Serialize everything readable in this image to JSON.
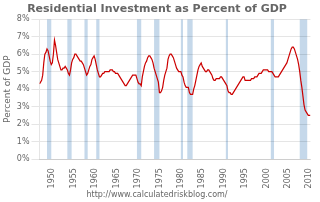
{
  "chart_data": {
    "type": "line",
    "title": "Residential Investment as Percent of GDP",
    "ylabel": "Percent of GDP",
    "annotations": [
      "http://www.calculatedriskblog.com/"
    ],
    "color": "#cc0000",
    "grid": "y",
    "xlim": [
      1947.0,
      2010.25
    ],
    "xticks": [
      1950,
      1955,
      1960,
      1965,
      1970,
      1975,
      1980,
      1985,
      1990,
      1995,
      2000,
      2005,
      2010
    ],
    "ylim": [
      0,
      8
    ],
    "yticks": [
      {
        "value": 0,
        "label": "0%"
      },
      {
        "value": 1,
        "label": "1%"
      },
      {
        "value": 2,
        "label": "2%"
      },
      {
        "value": 3,
        "label": "3%"
      },
      {
        "value": 4,
        "label": "4%"
      },
      {
        "value": 5,
        "label": "5%"
      },
      {
        "value": 6,
        "label": "6%"
      },
      {
        "value": 7,
        "label": "7%"
      },
      {
        "value": 8,
        "label": "8%"
      }
    ],
    "recessions": [
      [
        1948.75,
        1949.75
      ],
      [
        1953.5,
        1954.5
      ],
      [
        1957.5,
        1958.25
      ],
      [
        1960.25,
        1961.0
      ],
      [
        1969.75,
        1970.75
      ],
      [
        1973.75,
        1975.0
      ],
      [
        1980.0,
        1980.5
      ],
      [
        1981.5,
        1982.75
      ],
      [
        1990.5,
        1991.0
      ],
      [
        2001.0,
        2001.75
      ],
      [
        2007.75,
        2009.5
      ]
    ],
    "recession_color": "#c5d8ea",
    "x": [
      1947.0,
      1947.25,
      1947.5,
      1947.75,
      1948.0,
      1948.25,
      1948.5,
      1948.75,
      1949.0,
      1949.25,
      1949.5,
      1949.75,
      1950.0,
      1950.25,
      1950.5,
      1950.75,
      1951.0,
      1951.25,
      1951.5,
      1951.75,
      1952.0,
      1952.25,
      1952.5,
      1952.75,
      1953.0,
      1953.25,
      1953.5,
      1953.75,
      1954.0,
      1954.25,
      1954.5,
      1954.75,
      1955.0,
      1955.25,
      1955.5,
      1955.75,
      1956.0,
      1956.25,
      1956.5,
      1956.75,
      1957.0,
      1957.25,
      1957.5,
      1957.75,
      1958.0,
      1958.25,
      1958.5,
      1958.75,
      1959.0,
      1959.25,
      1959.5,
      1959.75,
      1960.0,
      1960.25,
      1960.5,
      1960.75,
      1961.0,
      1961.25,
      1961.5,
      1961.75,
      1962.0,
      1962.25,
      1962.5,
      1962.75,
      1963.0,
      1963.25,
      1963.5,
      1963.75,
      1964.0,
      1964.25,
      1964.5,
      1964.75,
      1965.0,
      1965.25,
      1965.5,
      1965.75,
      1966.0,
      1966.25,
      1966.5,
      1966.75,
      1967.0,
      1967.25,
      1967.5,
      1967.75,
      1968.0,
      1968.25,
      1968.5,
      1968.75,
      1969.0,
      1969.25,
      1969.5,
      1969.75,
      1970.0,
      1970.25,
      1970.5,
      1970.75,
      1971.0,
      1971.25,
      1971.5,
      1971.75,
      1972.0,
      1972.25,
      1972.5,
      1972.75,
      1973.0,
      1973.25,
      1973.5,
      1973.75,
      1974.0,
      1974.25,
      1974.5,
      1974.75,
      1975.0,
      1975.25,
      1975.5,
      1975.75,
      1976.0,
      1976.25,
      1976.5,
      1976.75,
      1977.0,
      1977.25,
      1977.5,
      1977.75,
      1978.0,
      1978.25,
      1978.5,
      1978.75,
      1979.0,
      1979.25,
      1979.5,
      1979.75,
      1980.0,
      1980.25,
      1980.5,
      1980.75,
      1981.0,
      1981.25,
      1981.5,
      1981.75,
      1982.0,
      1982.25,
      1982.5,
      1982.75,
      1983.0,
      1983.25,
      1983.5,
      1983.75,
      1984.0,
      1984.25,
      1984.5,
      1984.75,
      1985.0,
      1985.25,
      1985.5,
      1985.75,
      1986.0,
      1986.25,
      1986.5,
      1986.75,
      1987.0,
      1987.25,
      1987.5,
      1987.75,
      1988.0,
      1988.25,
      1988.5,
      1988.75,
      1989.0,
      1989.25,
      1989.5,
      1989.75,
      1990.0,
      1990.25,
      1990.5,
      1990.75,
      1991.0,
      1991.25,
      1991.5,
      1991.75,
      1992.0,
      1992.25,
      1992.5,
      1992.75,
      1993.0,
      1993.25,
      1993.5,
      1993.75,
      1994.0,
      1994.25,
      1994.5,
      1994.75,
      1995.0,
      1995.25,
      1995.5,
      1995.75,
      1996.0,
      1996.25,
      1996.5,
      1996.75,
      1997.0,
      1997.25,
      1997.5,
      1997.75,
      1998.0,
      1998.25,
      1998.5,
      1998.75,
      1999.0,
      1999.25,
      1999.5,
      1999.75,
      2000.0,
      2000.25,
      2000.5,
      2000.75,
      2001.0,
      2001.25,
      2001.5,
      2001.75,
      2002.0,
      2002.25,
      2002.5,
      2002.75,
      2003.0,
      2003.25,
      2003.5,
      2003.75,
      2004.0,
      2004.25,
      2004.5,
      2004.75,
      2005.0,
      2005.25,
      2005.5,
      2005.75,
      2006.0,
      2006.25,
      2006.5,
      2006.75,
      2007.0,
      2007.25,
      2007.5,
      2007.75,
      2008.0,
      2008.25,
      2008.5,
      2008.75,
      2009.0,
      2009.25,
      2009.5,
      2009.75,
      2010.0,
      2010.25
    ],
    "values": [
      4.3,
      4.4,
      4.5,
      4.8,
      5.5,
      6.0,
      6.1,
      6.3,
      6.2,
      5.9,
      5.6,
      5.4,
      5.5,
      6.0,
      6.8,
      6.5,
      6.1,
      5.7,
      5.5,
      5.3,
      5.1,
      5.1,
      5.2,
      5.2,
      5.3,
      5.2,
      5.1,
      4.9,
      4.8,
      5.1,
      5.5,
      5.7,
      5.8,
      6.0,
      6.0,
      5.9,
      5.8,
      5.7,
      5.6,
      5.6,
      5.5,
      5.4,
      5.2,
      5.0,
      4.8,
      4.9,
      5.1,
      5.3,
      5.4,
      5.7,
      5.8,
      5.9,
      5.7,
      5.4,
      5.1,
      4.9,
      4.7,
      4.7,
      4.8,
      4.9,
      4.9,
      5.0,
      5.0,
      5.0,
      5.0,
      5.0,
      5.1,
      5.1,
      5.1,
      5.0,
      5.0,
      4.9,
      4.9,
      4.9,
      4.8,
      4.7,
      4.6,
      4.5,
      4.4,
      4.3,
      4.2,
      4.2,
      4.3,
      4.4,
      4.5,
      4.6,
      4.7,
      4.8,
      4.8,
      4.8,
      4.8,
      4.6,
      4.4,
      4.3,
      4.3,
      4.2,
      4.7,
      5.0,
      5.3,
      5.5,
      5.6,
      5.8,
      5.9,
      5.9,
      5.8,
      5.7,
      5.5,
      5.2,
      5.0,
      4.8,
      4.6,
      4.4,
      3.8,
      3.8,
      3.9,
      4.1,
      4.5,
      4.8,
      5.0,
      5.2,
      5.7,
      5.9,
      6.0,
      6.0,
      5.9,
      5.8,
      5.6,
      5.4,
      5.2,
      5.1,
      5.0,
      5.0,
      5.0,
      4.8,
      4.7,
      4.4,
      4.2,
      4.1,
      4.1,
      4.1,
      3.8,
      3.7,
      3.7,
      3.7,
      4.0,
      4.2,
      4.5,
      4.8,
      5.1,
      5.3,
      5.4,
      5.5,
      5.3,
      5.2,
      5.1,
      5.0,
      5.0,
      5.1,
      5.1,
      5.0,
      4.9,
      4.8,
      4.6,
      4.5,
      4.5,
      4.6,
      4.6,
      4.6,
      4.6,
      4.7,
      4.7,
      4.6,
      4.5,
      4.4,
      4.3,
      4.2,
      3.9,
      3.8,
      3.8,
      3.7,
      3.7,
      3.8,
      3.9,
      4.0,
      4.1,
      4.2,
      4.3,
      4.4,
      4.5,
      4.6,
      4.7,
      4.7,
      4.5,
      4.5,
      4.5,
      4.5,
      4.5,
      4.5,
      4.6,
      4.6,
      4.6,
      4.7,
      4.7,
      4.7,
      4.8,
      4.9,
      4.9,
      4.9,
      5.0,
      5.1,
      5.1,
      5.1,
      5.1,
      5.1,
      5.0,
      5.0,
      5.0,
      5.0,
      4.9,
      4.8,
      4.7,
      4.7,
      4.7,
      4.7,
      4.8,
      4.9,
      5.0,
      5.1,
      5.2,
      5.3,
      5.4,
      5.5,
      5.7,
      5.9,
      6.1,
      6.3,
      6.4,
      6.4,
      6.3,
      6.1,
      5.9,
      5.7,
      5.4,
      5.0,
      4.5,
      4.1,
      3.6,
      3.1,
      2.8,
      2.7,
      2.6,
      2.5,
      2.5,
      2.5
    ]
  }
}
